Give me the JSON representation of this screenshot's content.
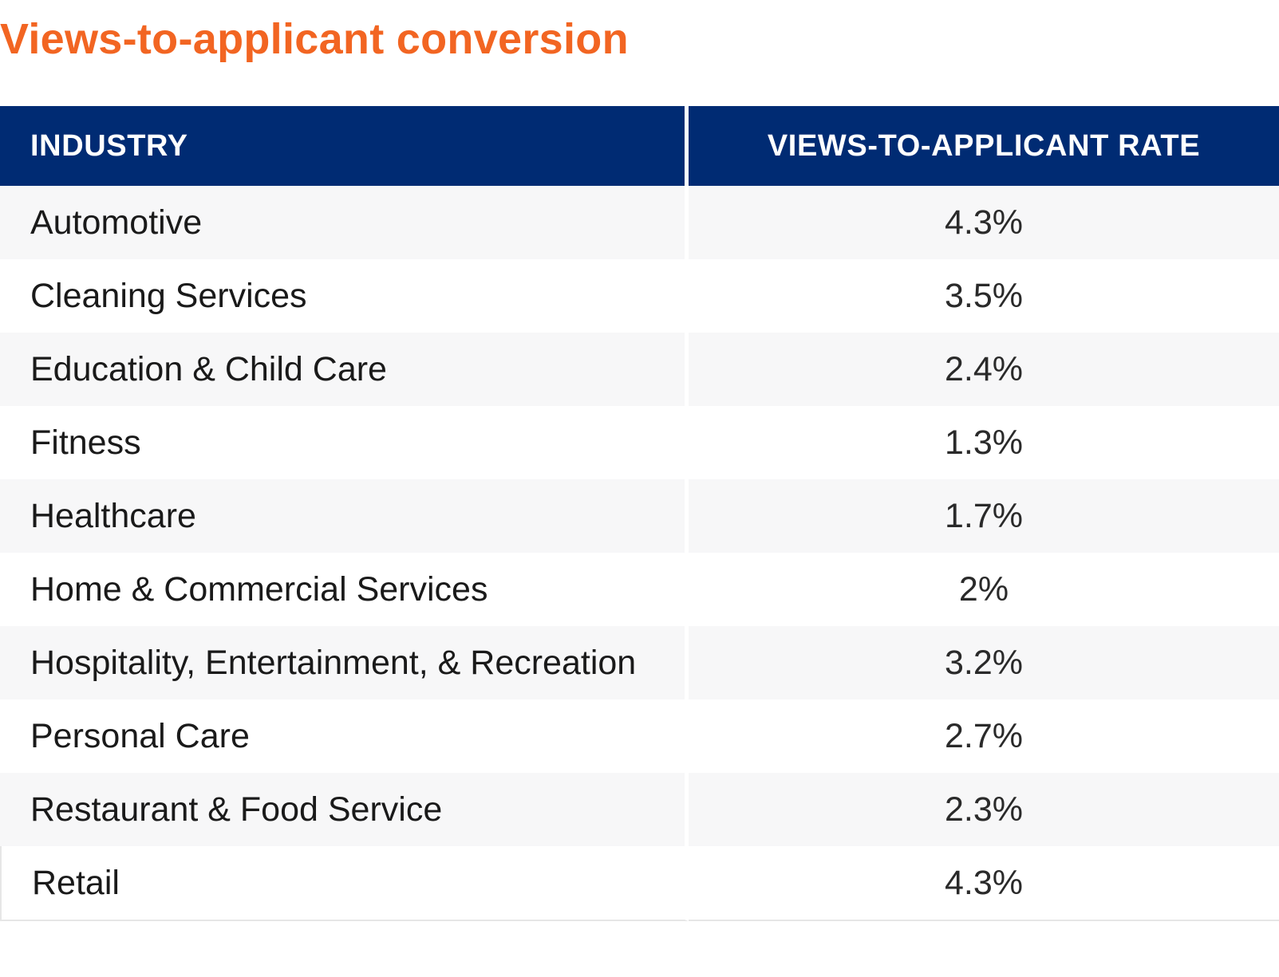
{
  "title": "Views-to-applicant conversion",
  "colors": {
    "title": "#f26522",
    "header_bg": "#002b73",
    "header_text": "#ffffff",
    "row_alt": "#f7f7f8"
  },
  "chart_data": {
    "type": "table",
    "title": "Views-to-applicant conversion",
    "columns": [
      "INDUSTRY",
      "VIEWS-TO-APPLICANT RATE"
    ],
    "rows": [
      {
        "industry": "Automotive",
        "rate": "4.3%"
      },
      {
        "industry": "Cleaning Services",
        "rate": "3.5%"
      },
      {
        "industry": "Education & Child Care",
        "rate": "2.4%"
      },
      {
        "industry": "Fitness",
        "rate": "1.3%"
      },
      {
        "industry": "Healthcare",
        "rate": "1.7%"
      },
      {
        "industry": "Home & Commercial Services",
        "rate": "2%"
      },
      {
        "industry": "Hospitality, Entertainment, & Recreation",
        "rate": "3.2%"
      },
      {
        "industry": "Personal Care",
        "rate": "2.7%"
      },
      {
        "industry": "Restaurant & Food Service",
        "rate": "2.3%"
      },
      {
        "industry": "Retail",
        "rate": "4.3%"
      }
    ]
  }
}
